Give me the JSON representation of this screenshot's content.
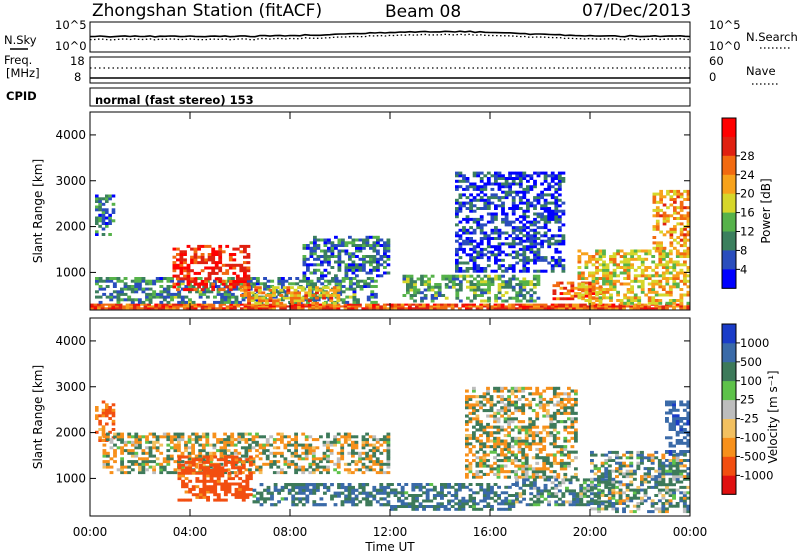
{
  "header": {
    "station": "Zhongshan Station (fitACF)",
    "beam": "Beam 08",
    "date": "07/Dec/2013"
  },
  "top_panels": {
    "nsky_label": "N.Sky",
    "nsearch_label": "N.Search",
    "noise_ticks_left": [
      "10^5",
      "10^0"
    ],
    "noise_ticks_right": [
      "10^5",
      "10^0"
    ],
    "freq_label_1": "Freq.",
    "freq_label_2": "[MHz]",
    "freq_ticks_left": [
      "18",
      "8"
    ],
    "freq_ticks_right": [
      "60",
      "0"
    ],
    "nave_label": "Nave",
    "cpid_label": "CPID",
    "cpid_text": "normal (fast stereo) 153"
  },
  "chart_data": [
    {
      "type": "heatmap",
      "title": "",
      "xlabel": "Time UT",
      "ylabel": "Slant Range [km]",
      "x_ticks": [
        "00:00",
        "04:00",
        "08:00",
        "12:00",
        "16:00",
        "20:00",
        "00:00"
      ],
      "x_hours": [
        0,
        4,
        8,
        12,
        16,
        20,
        24
      ],
      "xlim_hours": [
        0,
        24
      ],
      "ylim": [
        180,
        4500
      ],
      "y_ticks": [
        1000,
        2000,
        3000,
        4000
      ],
      "colorbar": {
        "label": "Power [dB]",
        "ticks": [
          "4",
          "8",
          "12",
          "16",
          "20",
          "24",
          "28"
        ],
        "colors": [
          "#0000ff",
          "#2a4dbd",
          "#3b7f5e",
          "#56b24a",
          "#d6d62a",
          "#f7a21b",
          "#f26a10",
          "#e02010",
          "#ff0000"
        ]
      },
      "echo_regions": [
        {
          "t": [
            0.0,
            24.0
          ],
          "r": [
            200,
            320
          ],
          "value": 24
        },
        {
          "t": [
            0.2,
            11.5
          ],
          "r": [
            320,
            900
          ],
          "value": 10
        },
        {
          "t": [
            0.2,
            1.0
          ],
          "r": [
            1800,
            2700
          ],
          "value": 8
        },
        {
          "t": [
            3.3,
            6.4
          ],
          "r": [
            600,
            1600
          ],
          "value": 26
        },
        {
          "t": [
            6.0,
            10.0
          ],
          "r": [
            300,
            700
          ],
          "value": 20
        },
        {
          "t": [
            8.5,
            12.0
          ],
          "r": [
            900,
            1800
          ],
          "value": 8
        },
        {
          "t": [
            12.5,
            18.0
          ],
          "r": [
            350,
            950
          ],
          "value": 12
        },
        {
          "t": [
            14.6,
            19.0
          ],
          "r": [
            1000,
            3200
          ],
          "value": 6
        },
        {
          "t": [
            18.5,
            20.5
          ],
          "r": [
            400,
            800
          ],
          "value": 24
        },
        {
          "t": [
            19.5,
            24.0
          ],
          "r": [
            300,
            1500
          ],
          "value": 18
        },
        {
          "t": [
            22.5,
            24.0
          ],
          "r": [
            1500,
            2800
          ],
          "value": 20
        }
      ]
    },
    {
      "type": "heatmap",
      "title": "",
      "xlabel": "Time UT",
      "ylabel": "Slant Range [km]",
      "x_ticks": [
        "00:00",
        "04:00",
        "08:00",
        "12:00",
        "16:00",
        "20:00",
        "00:00"
      ],
      "x_hours": [
        0,
        4,
        8,
        12,
        16,
        20,
        24
      ],
      "xlim_hours": [
        0,
        24
      ],
      "ylim": [
        180,
        4500
      ],
      "y_ticks": [
        1000,
        2000,
        3000,
        4000
      ],
      "colorbar": {
        "label": "Velocity [m s⁻¹]",
        "ticks": [
          "1000",
          "500",
          "100",
          "25",
          "-25",
          "-100",
          "-500",
          "-1000"
        ],
        "colors": [
          "#1a3cc8",
          "#3a6aa8",
          "#3d7a5a",
          "#5ec24a",
          "#bdbdbd",
          "#f2c060",
          "#f7901b",
          "#f24e10",
          "#e01010"
        ]
      },
      "echo_regions": [
        {
          "t": [
            0.2,
            1.0
          ],
          "r": [
            1800,
            2700
          ],
          "value": -300
        },
        {
          "t": [
            0.5,
            12.0
          ],
          "r": [
            1100,
            2000
          ],
          "value": 0
        },
        {
          "t": [
            3.5,
            6.5
          ],
          "r": [
            500,
            1500
          ],
          "value": -500
        },
        {
          "t": [
            6.5,
            12.0
          ],
          "r": [
            400,
            900
          ],
          "value": 300
        },
        {
          "t": [
            12.0,
            17.0
          ],
          "r": [
            300,
            900
          ],
          "value": 300
        },
        {
          "t": [
            15.0,
            19.5
          ],
          "r": [
            1000,
            3000
          ],
          "value": 0
        },
        {
          "t": [
            17.0,
            21.0
          ],
          "r": [
            400,
            1000
          ],
          "value": 200
        },
        {
          "t": [
            20.0,
            24.0
          ],
          "r": [
            250,
            1600
          ],
          "value": 150
        },
        {
          "t": [
            23.0,
            24.0
          ],
          "r": [
            1500,
            2700
          ],
          "value": 600
        }
      ]
    }
  ]
}
